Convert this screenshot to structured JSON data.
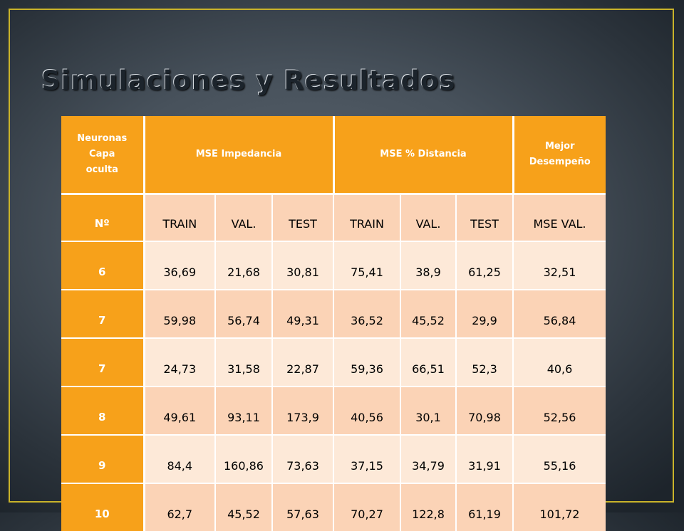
{
  "slide": {
    "title": "Simulaciones y Resultados"
  },
  "table": {
    "header": {
      "col1": [
        "Neuronas",
        "Capa",
        "oculta"
      ],
      "col2": "MSE Impedancia",
      "col3": "MSE % Distancia",
      "col4": [
        "Mejor",
        "Desempeño"
      ]
    },
    "subheader": [
      "Nº",
      "TRAIN",
      "VAL.",
      "TEST",
      "TRAIN",
      "VAL.",
      "TEST",
      "MSE VAL."
    ],
    "rows": [
      [
        "6",
        "36,69",
        "21,68",
        "30,81",
        "75,41",
        "38,9",
        "61,25",
        "32,51"
      ],
      [
        "7",
        "59,98",
        "56,74",
        "49,31",
        "36,52",
        "45,52",
        "29,9",
        "56,84"
      ],
      [
        "7",
        "24,73",
        "31,58",
        "22,87",
        "59,36",
        "66,51",
        "52,3",
        "40,6"
      ],
      [
        "8",
        "49,61",
        "93,11",
        "173,9",
        "40,56",
        "30,1",
        "70,98",
        "52,56"
      ],
      [
        "9",
        "84,4",
        "160,86",
        "73,63",
        "37,15",
        "34,79",
        "31,91",
        "55,16"
      ],
      [
        "10",
        "62,7",
        "45,52",
        "57,63",
        "70,27",
        "122,8",
        "61,19",
        "101,72"
      ]
    ]
  }
}
